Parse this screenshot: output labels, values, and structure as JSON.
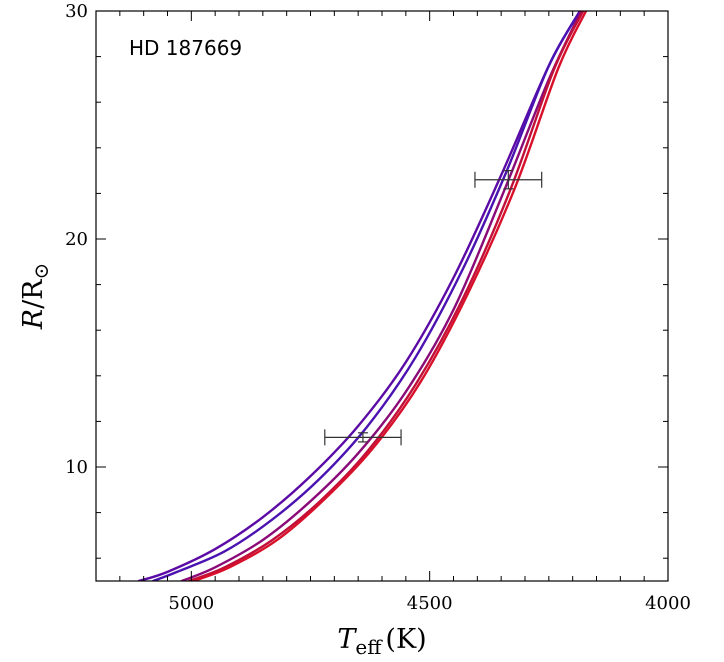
{
  "chart_data": {
    "type": "line",
    "title": "",
    "annotation": "HD 187669",
    "xlabel": {
      "symbol": "T",
      "subscript": "eff",
      "unit": "(K)"
    },
    "ylabel": {
      "symbol": "R",
      "slash": "/R",
      "sun": "⊙"
    },
    "x_reversed": true,
    "xlim": [
      5200,
      4000
    ],
    "ylim": [
      5,
      30
    ],
    "xticks_major": [
      5000,
      4500,
      4000
    ],
    "xticks_major_labels": [
      "5000",
      "4500",
      "4000"
    ],
    "xticks_minor": [
      5150,
      5100,
      5050,
      4950,
      4900,
      4850,
      4800,
      4750,
      4700,
      4650,
      4600,
      4550,
      4450,
      4400,
      4350,
      4300,
      4250,
      4200,
      4150,
      4100,
      4050
    ],
    "yticks_major": [
      10,
      20,
      30
    ],
    "yticks_major_labels": [
      "10",
      "20",
      "30"
    ],
    "yticks_minor": [
      6,
      8,
      12,
      14,
      16,
      18,
      22,
      24,
      26,
      28
    ],
    "grid": false,
    "series": [
      {
        "color": "#5b0aa6",
        "x": [
          5110,
          5050,
          4950,
          4850,
          4750,
          4650,
          4550,
          4450,
          4350,
          4250,
          4185
        ],
        "y": [
          5.0,
          5.4,
          6.4,
          7.8,
          9.6,
          11.8,
          14.6,
          18.3,
          22.8,
          27.6,
          30.0
        ]
      },
      {
        "color": "#4a12b0",
        "x": [
          5080,
          5030,
          4930,
          4830,
          4730,
          4630,
          4530,
          4430,
          4340,
          4250,
          4184
        ],
        "y": [
          5.0,
          5.4,
          6.3,
          7.7,
          9.5,
          11.8,
          14.8,
          18.7,
          22.9,
          27.6,
          30.0
        ]
      },
      {
        "color": "#8a0a78",
        "x": [
          5020,
          4950,
          4850,
          4750,
          4650,
          4550,
          4450,
          4350,
          4250,
          4182
        ],
        "y": [
          5.0,
          5.6,
          6.8,
          8.5,
          10.6,
          13.3,
          16.9,
          21.8,
          27.0,
          30.0
        ]
      },
      {
        "color": "#c0103a",
        "x": [
          5005,
          4930,
          4830,
          4730,
          4630,
          4530,
          4430,
          4330,
          4240,
          4178
        ],
        "y": [
          5.0,
          5.6,
          6.8,
          8.5,
          10.7,
          13.6,
          17.4,
          22.2,
          27.4,
          30.0
        ]
      },
      {
        "color": "#d8102a",
        "x": [
          4995,
          4920,
          4820,
          4720,
          4620,
          4520,
          4420,
          4320,
          4230,
          4172
        ],
        "y": [
          5.0,
          5.6,
          6.8,
          8.6,
          10.8,
          13.7,
          17.6,
          22.3,
          27.5,
          30.0
        ]
      }
    ],
    "error_bars": [
      {
        "x": 4640,
        "y": 11.3,
        "xerr": 80,
        "yerr": 0.2
      },
      {
        "x": 4335,
        "y": 22.6,
        "xerr": 70,
        "yerr": 0.4
      }
    ]
  }
}
